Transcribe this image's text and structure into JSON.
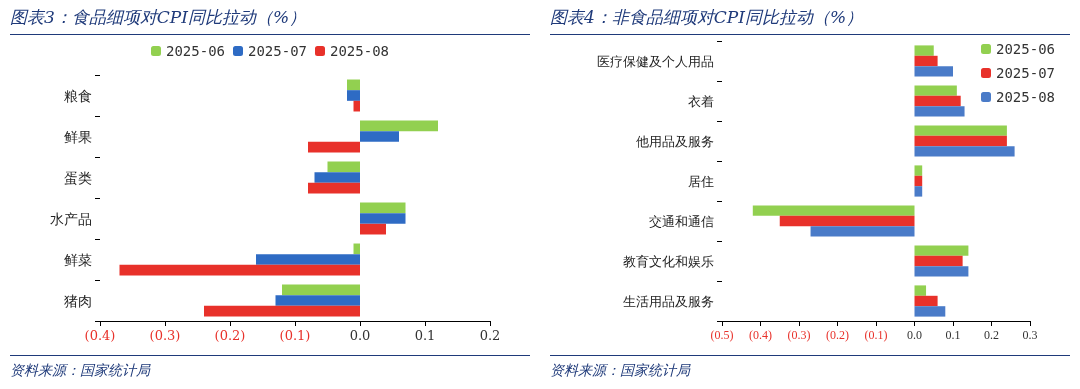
{
  "chart_data": [
    {
      "type": "bar",
      "orientation": "horizontal",
      "title": "图表3：食品细项对CPI同比拉动（%）",
      "categories": [
        "粮食",
        "鲜果",
        "蛋类",
        "水产品",
        "鲜菜",
        "猪肉"
      ],
      "series": [
        {
          "name": "2025-06",
          "color": "#92d050",
          "values": [
            -0.02,
            0.12,
            -0.05,
            0.07,
            -0.01,
            -0.12
          ]
        },
        {
          "name": "2025-07",
          "color": "#2e6bc4",
          "values": [
            -0.02,
            0.06,
            -0.07,
            0.07,
            -0.16,
            -0.13
          ]
        },
        {
          "name": "2025-08",
          "color": "#e8312a",
          "values": [
            -0.01,
            -0.08,
            -0.08,
            0.04,
            -0.37,
            -0.24
          ]
        }
      ],
      "xlim": [
        -0.4,
        0.2
      ],
      "xticks": [
        {
          "value": -0.4,
          "label": "(0.4)"
        },
        {
          "value": -0.3,
          "label": "(0.3)"
        },
        {
          "value": -0.2,
          "label": "(0.2)"
        },
        {
          "value": -0.1,
          "label": "(0.1)"
        },
        {
          "value": 0,
          "label": "0.0"
        },
        0.1,
        0.2
      ],
      "grid": false,
      "legend": "top",
      "annotations": [
        "资料来源：国家统计局"
      ]
    },
    {
      "type": "bar",
      "orientation": "horizontal",
      "title": "图表4：非食品细项对CPI同比拉动（%）",
      "categories": [
        "医疗保健及个人用品",
        "衣着",
        "他用品及服务",
        "居住",
        "交通和通信",
        "教育文化和娱乐",
        "生活用品及服务"
      ],
      "series": [
        {
          "name": "2025-06",
          "color": "#92d050",
          "values": [
            0.05,
            0.11,
            0.24,
            0.02,
            -0.42,
            0.14,
            0.03
          ]
        },
        {
          "name": "2025-07",
          "color": "#e8312a",
          "values": [
            0.06,
            0.12,
            0.24,
            0.02,
            -0.35,
            0.125,
            0.06
          ]
        },
        {
          "name": "2025-08",
          "color": "#4a7bc8",
          "values": [
            0.1,
            0.13,
            0.26,
            0.02,
            -0.27,
            0.14,
            0.08
          ]
        }
      ],
      "xlim": [
        -0.5,
        0.3
      ],
      "xticks": [
        {
          "value": -0.5,
          "label": "(0.5)"
        },
        {
          "value": -0.4,
          "label": "(0.4)"
        },
        {
          "value": -0.3,
          "label": "(0.3)"
        },
        {
          "value": -0.2,
          "label": "(0.2)"
        },
        {
          "value": -0.1,
          "label": "(0.1)"
        },
        {
          "value": 0,
          "label": "0.0"
        },
        0.1,
        0.2,
        0.3
      ],
      "grid": false,
      "legend": "top right",
      "annotations": [
        "资料来源：国家统计局"
      ]
    }
  ]
}
